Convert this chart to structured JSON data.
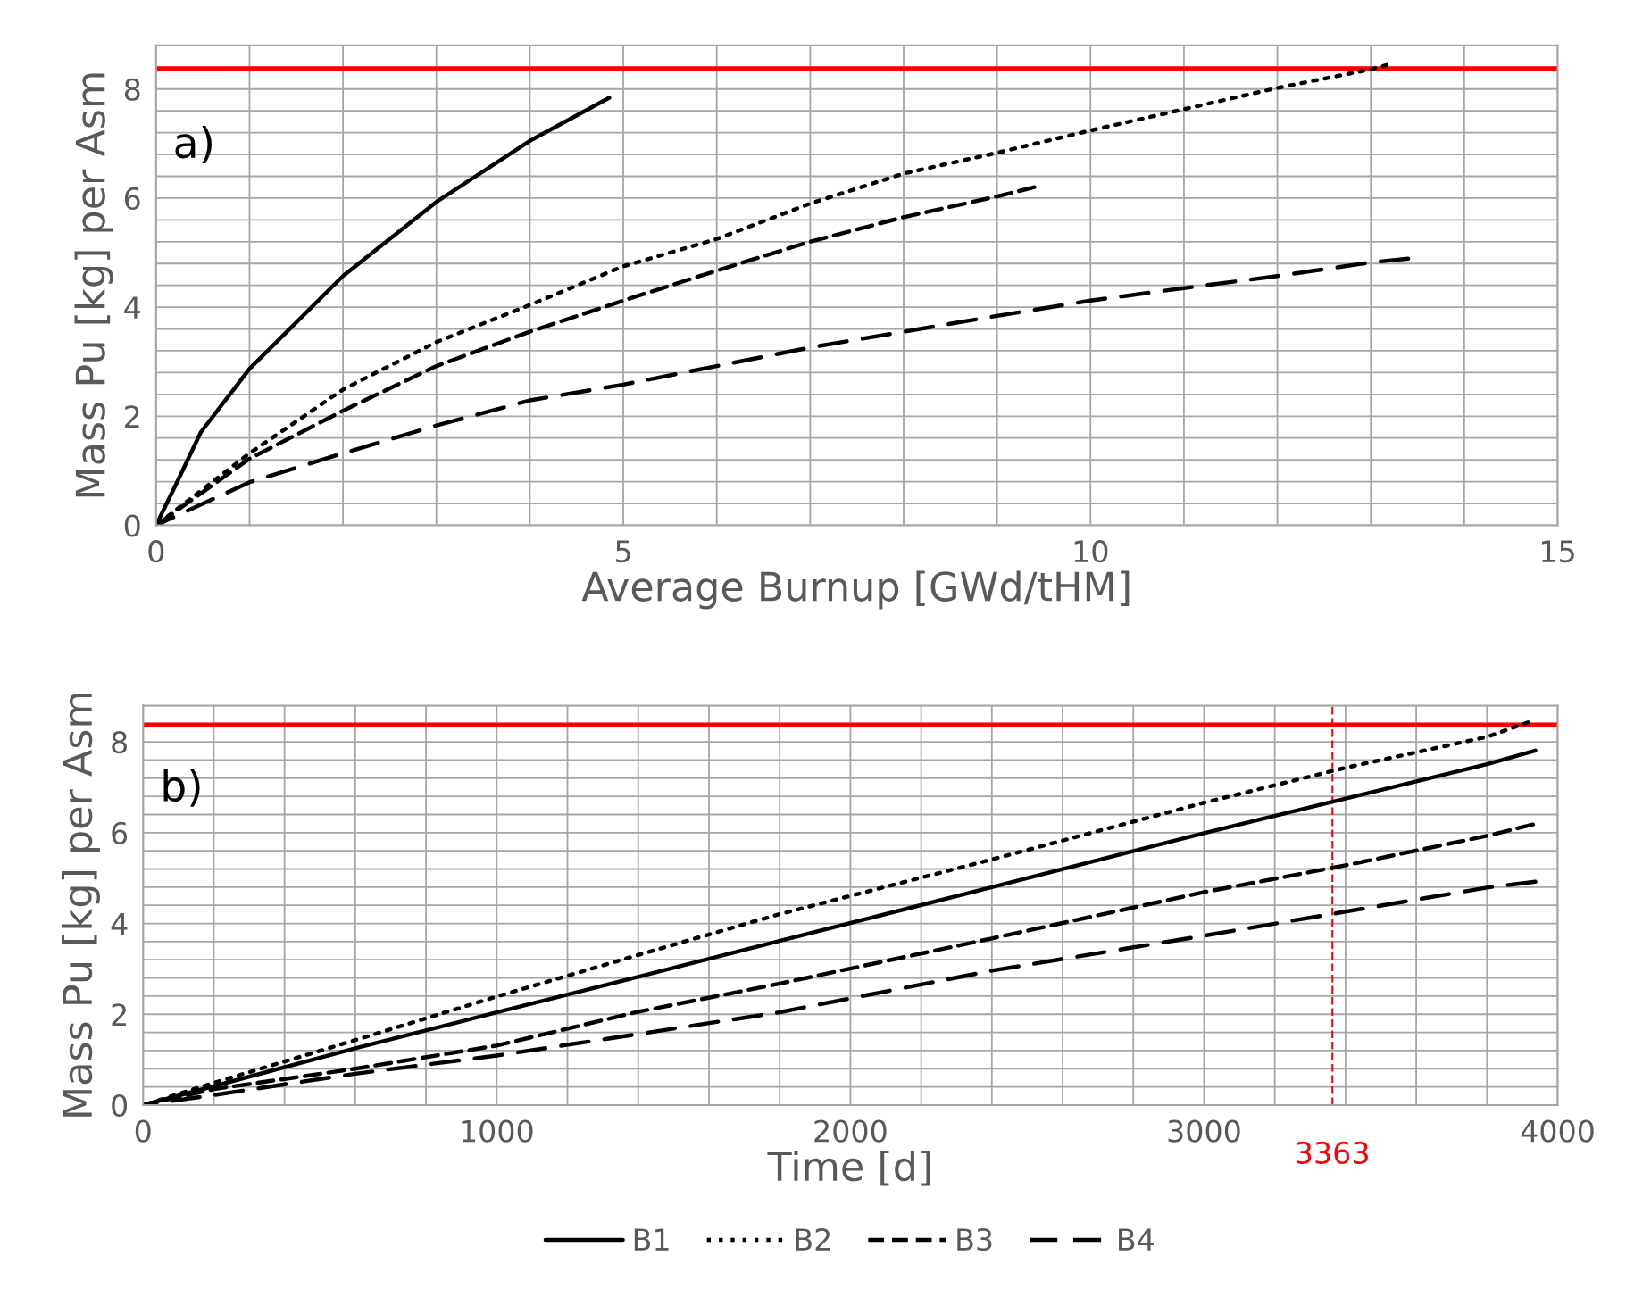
{
  "chart_data": [
    {
      "type": "line",
      "xlabel": "Average Burnup [GWd/tHM]",
      "ylabel": "Mass Pu [kg] per Asm",
      "annotations": [
        "a)"
      ],
      "xlim": [
        0,
        15
      ],
      "xticks": [
        0,
        {
          "value": 1,
          "label": null
        },
        {
          "value": 2,
          "label": null
        },
        {
          "value": 3,
          "label": null
        },
        {
          "value": 4,
          "label": null
        },
        5,
        {
          "value": 6,
          "label": null
        },
        {
          "value": 7,
          "label": null
        },
        {
          "value": 8,
          "label": null
        },
        {
          "value": 9,
          "label": null
        },
        10,
        {
          "value": 11,
          "label": null
        },
        {
          "value": 12,
          "label": null
        },
        {
          "value": 13,
          "label": null
        },
        {
          "value": 14,
          "label": null
        },
        15
      ],
      "ylim": [
        0,
        8.8
      ],
      "yticks": [
        0,
        {
          "value": 0.4,
          "label": null
        },
        {
          "value": 0.8,
          "label": null
        },
        {
          "value": 1.2,
          "label": null
        },
        {
          "value": 1.6,
          "label": null
        },
        2,
        {
          "value": 2.4,
          "label": null
        },
        {
          "value": 2.8,
          "label": null
        },
        {
          "value": 3.2,
          "label": null
        },
        {
          "value": 3.6,
          "label": null
        },
        4,
        {
          "value": 4.4,
          "label": null
        },
        {
          "value": 4.8,
          "label": null
        },
        {
          "value": 5.2,
          "label": null
        },
        {
          "value": 5.6,
          "label": null
        },
        6,
        {
          "value": 6.4,
          "label": null
        },
        {
          "value": 6.8,
          "label": null
        },
        {
          "value": 7.2,
          "label": null
        },
        {
          "value": 7.6,
          "label": null
        },
        8,
        {
          "value": 8.4,
          "label": null
        },
        {
          "value": 8.8,
          "label": null
        }
      ],
      "grid": true,
      "ref_lines": [
        {
          "axis": "y",
          "value": 8.37,
          "color": "#ff0000",
          "line_style": "solid"
        }
      ],
      "series": [
        {
          "color": "#000000",
          "line_style": "solid",
          "x": [
            0,
            0.21,
            0.48,
            1.0,
            2.0,
            3.0,
            4.0,
            4.85
          ],
          "values": [
            0,
            0.74,
            1.71,
            2.87,
            4.57,
            5.93,
            7.05,
            7.84
          ]
        },
        {
          "color": "#000000",
          "line_style": "dotted",
          "x": [
            0,
            1,
            2,
            3,
            4,
            5,
            6,
            7,
            8,
            9,
            10,
            11,
            12,
            13,
            13.17
          ],
          "values": [
            0,
            1.32,
            2.49,
            3.36,
            4.04,
            4.75,
            5.25,
            5.9,
            6.45,
            6.83,
            7.24,
            7.63,
            8.02,
            8.36,
            8.44
          ]
        },
        {
          "color": "#000000",
          "line_style": "dashed",
          "x": [
            0,
            1,
            2,
            3,
            4,
            5,
            6,
            7,
            8,
            9,
            9.4
          ],
          "values": [
            0,
            1.22,
            2.1,
            2.92,
            3.55,
            4.12,
            4.67,
            5.2,
            5.65,
            6.03,
            6.2
          ]
        },
        {
          "color": "#000000",
          "line_style": "long_dashed",
          "x": [
            0,
            1,
            2,
            3,
            4,
            5,
            6,
            7,
            8,
            9,
            10,
            11,
            12,
            13,
            13.4
          ],
          "values": [
            0,
            0.79,
            1.32,
            1.83,
            2.29,
            2.58,
            2.92,
            3.26,
            3.55,
            3.84,
            4.12,
            4.35,
            4.57,
            4.82,
            4.89
          ]
        }
      ]
    },
    {
      "type": "line",
      "xlabel": "Time [d]",
      "ylabel": "Mass Pu [kg] per Asm",
      "annotations": [
        "b)"
      ],
      "xlim": [
        0,
        4000
      ],
      "xticks": [
        0,
        {
          "value": 200,
          "label": null
        },
        {
          "value": 400,
          "label": null
        },
        {
          "value": 600,
          "label": null
        },
        {
          "value": 800,
          "label": null
        },
        1000,
        {
          "value": 1200,
          "label": null
        },
        {
          "value": 1400,
          "label": null
        },
        {
          "value": 1600,
          "label": null
        },
        {
          "value": 1800,
          "label": null
        },
        2000,
        {
          "value": 2200,
          "label": null
        },
        {
          "value": 2400,
          "label": null
        },
        {
          "value": 2600,
          "label": null
        },
        {
          "value": 2800,
          "label": null
        },
        3000,
        {
          "value": 3200,
          "label": null
        },
        {
          "value": 3400,
          "label": null
        },
        {
          "value": 3600,
          "label": null
        },
        {
          "value": 3800,
          "label": null
        },
        4000
      ],
      "ylim": [
        0,
        8.8
      ],
      "yticks": [
        0,
        {
          "value": 0.4,
          "label": null
        },
        {
          "value": 0.8,
          "label": null
        },
        {
          "value": 1.2,
          "label": null
        },
        {
          "value": 1.6,
          "label": null
        },
        2,
        {
          "value": 2.4,
          "label": null
        },
        {
          "value": 2.8,
          "label": null
        },
        {
          "value": 3.2,
          "label": null
        },
        {
          "value": 3.6,
          "label": null
        },
        4,
        {
          "value": 4.4,
          "label": null
        },
        {
          "value": 4.8,
          "label": null
        },
        {
          "value": 5.2,
          "label": null
        },
        {
          "value": 5.6,
          "label": null
        },
        6,
        {
          "value": 6.4,
          "label": null
        },
        {
          "value": 6.8,
          "label": null
        },
        {
          "value": 7.2,
          "label": null
        },
        {
          "value": 7.6,
          "label": null
        },
        8,
        {
          "value": 8.4,
          "label": null
        },
        {
          "value": 8.8,
          "label": null
        }
      ],
      "grid": true,
      "legend": "bottom",
      "ref_lines": [
        {
          "axis": "y",
          "value": 8.37,
          "color": "#ff0000",
          "line_style": "solid"
        },
        {
          "axis": "x",
          "value": 3363,
          "label": "3363",
          "color": "#ff0000",
          "line_style": "dashed"
        }
      ],
      "series": [
        {
          "name": "B1",
          "color": "#000000",
          "line_style": "solid",
          "x": [
            0,
            600,
            1000,
            1397,
            1797,
            2400,
            3000,
            3400,
            3800,
            3937
          ],
          "values": [
            0,
            1.25,
            2.04,
            2.82,
            3.61,
            4.8,
            5.99,
            6.75,
            7.51,
            7.81
          ]
        },
        {
          "name": "B2",
          "color": "#000000",
          "line_style": "dotted",
          "x": [
            0,
            200,
            600,
            1000,
            1397,
            1797,
            2400,
            3000,
            3400,
            3800,
            3916
          ],
          "values": [
            0,
            0.49,
            1.43,
            2.39,
            3.3,
            4.2,
            5.41,
            6.66,
            7.43,
            8.11,
            8.43
          ]
        },
        {
          "name": "B3",
          "color": "#000000",
          "line_style": "dashed",
          "x": [
            0,
            200,
            600,
            1000,
            1397,
            1797,
            2400,
            3000,
            3400,
            3800,
            3930
          ],
          "values": [
            0,
            0.35,
            0.8,
            1.31,
            2.05,
            2.67,
            3.67,
            4.69,
            5.28,
            5.93,
            6.18
          ]
        },
        {
          "name": "B4",
          "color": "#000000",
          "line_style": "long_dashed",
          "x": [
            0,
            200,
            600,
            1000,
            1397,
            1797,
            2400,
            3000,
            3400,
            3800,
            3937
          ],
          "values": [
            0,
            0.22,
            0.69,
            1.09,
            1.56,
            2.04,
            2.96,
            3.73,
            4.26,
            4.79,
            4.92
          ]
        }
      ]
    }
  ]
}
